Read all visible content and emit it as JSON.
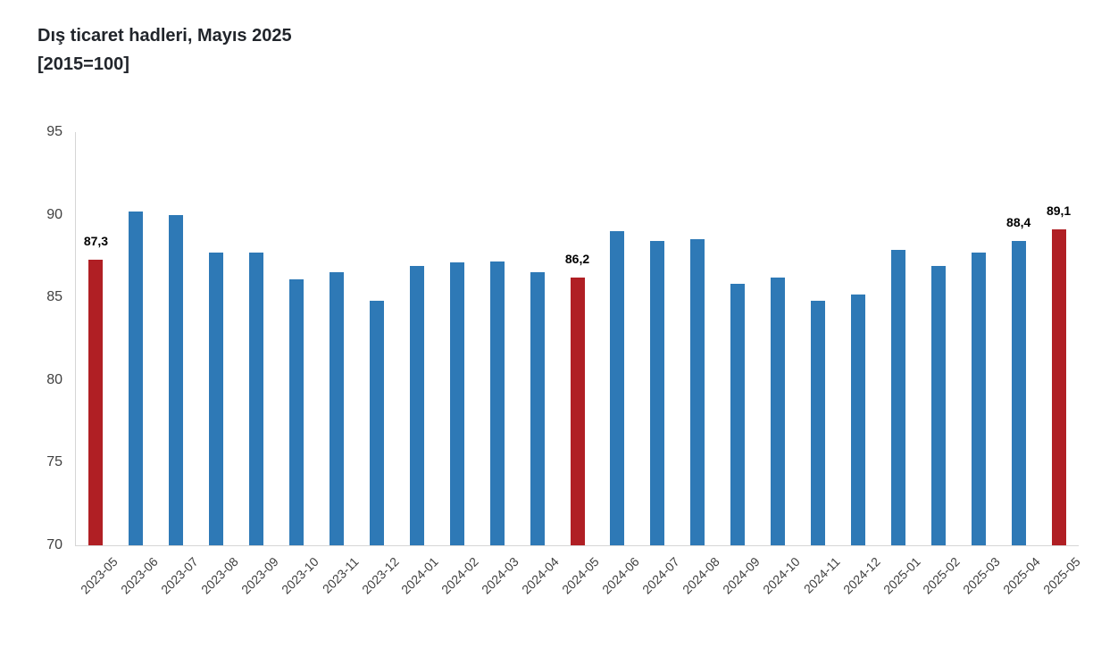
{
  "title": "Dış ticaret hadleri, Mayıs 2025",
  "subtitle": "[2015=100]",
  "chart_data": {
    "type": "bar",
    "title": "Dış ticaret hadleri, Mayıs 2025",
    "subtitle": "[2015=100]",
    "xlabel": "",
    "ylabel": "",
    "ylim": [
      70,
      95
    ],
    "yticks": [
      70,
      75,
      80,
      85,
      90,
      95
    ],
    "grid": false,
    "legend": false,
    "categories": [
      "2023-05",
      "2023-06",
      "2023-07",
      "2023-08",
      "2023-09",
      "2023-10",
      "2023-11",
      "2023-12",
      "2024-01",
      "2024-02",
      "2024-03",
      "2024-04",
      "2024-05",
      "2024-06",
      "2024-07",
      "2024-08",
      "2024-09",
      "2024-10",
      "2024-11",
      "2024-12",
      "2025-01",
      "2025-02",
      "2025-03",
      "2025-04",
      "2025-05"
    ],
    "values": [
      87.3,
      90.2,
      90.0,
      87.7,
      87.7,
      86.1,
      86.5,
      84.8,
      86.9,
      87.1,
      87.2,
      86.5,
      86.2,
      89.0,
      88.4,
      88.5,
      85.8,
      86.2,
      84.8,
      85.2,
      87.9,
      86.9,
      87.7,
      88.4,
      89.1
    ],
    "highlighted_categories": [
      "2023-05",
      "2024-05",
      "2025-05"
    ],
    "data_labels": {
      "2023-05": "87,3",
      "2024-05": "86,2",
      "2025-04": "88,4",
      "2025-05": "89,1"
    },
    "bar_color": "#2E79B6",
    "highlight_color": "#B01F24",
    "axis_line_color": "#d6d6d6",
    "tick_text_color": "#404040"
  }
}
